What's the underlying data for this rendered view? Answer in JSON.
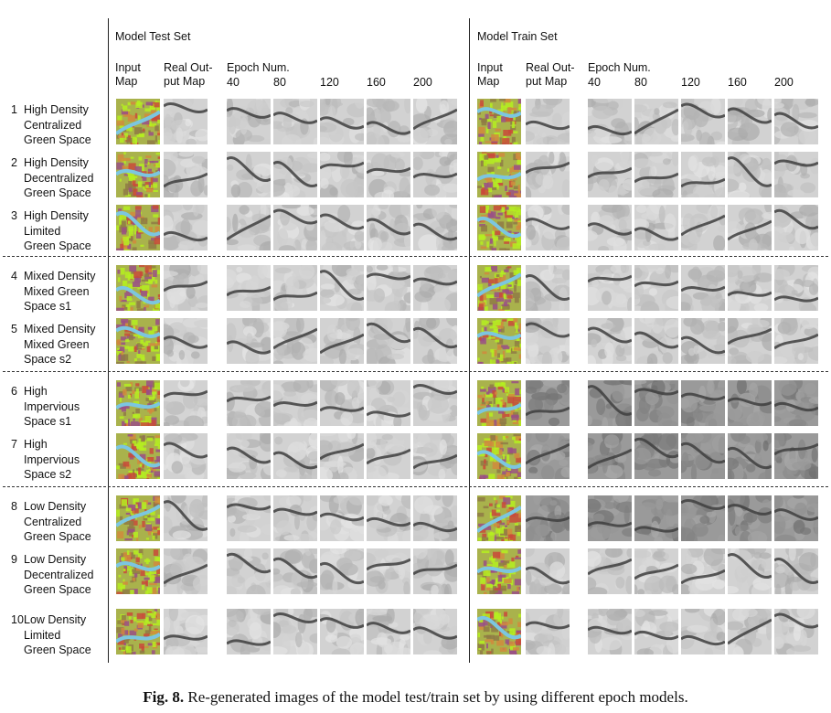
{
  "sections": {
    "test": "Model Test Set",
    "train": "Model Train Set"
  },
  "col_headers": {
    "input": [
      "Input",
      "Map"
    ],
    "real": [
      "Real Out-",
      "put Map"
    ],
    "epoch_label": "Epoch Num.",
    "epochs": [
      "40",
      "80",
      "120",
      "160",
      "200"
    ]
  },
  "rows": [
    {
      "num": "1",
      "lines": [
        "High Density",
        "Centralized",
        "Green Space"
      ]
    },
    {
      "num": "2",
      "lines": [
        "High Density",
        "Decentralized",
        "Green Space"
      ]
    },
    {
      "num": "3",
      "lines": [
        "High Density",
        "Limited",
        "Green Space"
      ]
    },
    {
      "num": "4",
      "lines": [
        "Mixed Density",
        "Mixed Green",
        "Space s1"
      ]
    },
    {
      "num": "5",
      "lines": [
        "Mixed Density",
        "Mixed Green",
        "Space s2"
      ]
    },
    {
      "num": "6",
      "lines": [
        "High",
        "Impervious",
        "Space s1"
      ]
    },
    {
      "num": "7",
      "lines": [
        "High",
        "Impervious",
        "Space s2"
      ]
    },
    {
      "num": "8",
      "lines": [
        "Low Density",
        "Centralized",
        "Green Space"
      ]
    },
    {
      "num": "9",
      "lines": [
        "Low Density",
        "Decentralized",
        "Green Space"
      ]
    },
    {
      "num": "10",
      "lines": [
        "Low Density",
        "Limited",
        "Green Space"
      ]
    }
  ],
  "caption": {
    "label": "Fig. 8.",
    "text": "Re-generated images of the model test/train set by using different epoch models."
  },
  "colors": {
    "map_bg": "#a9b24c",
    "map_green": "#b5ef20",
    "map_water": "#7cc6e0",
    "map_red": "#c94a3a",
    "map_purple": "#9a4f86",
    "gray_light": "#d2d2d2",
    "gray_dark": "#3e3e3e"
  }
}
